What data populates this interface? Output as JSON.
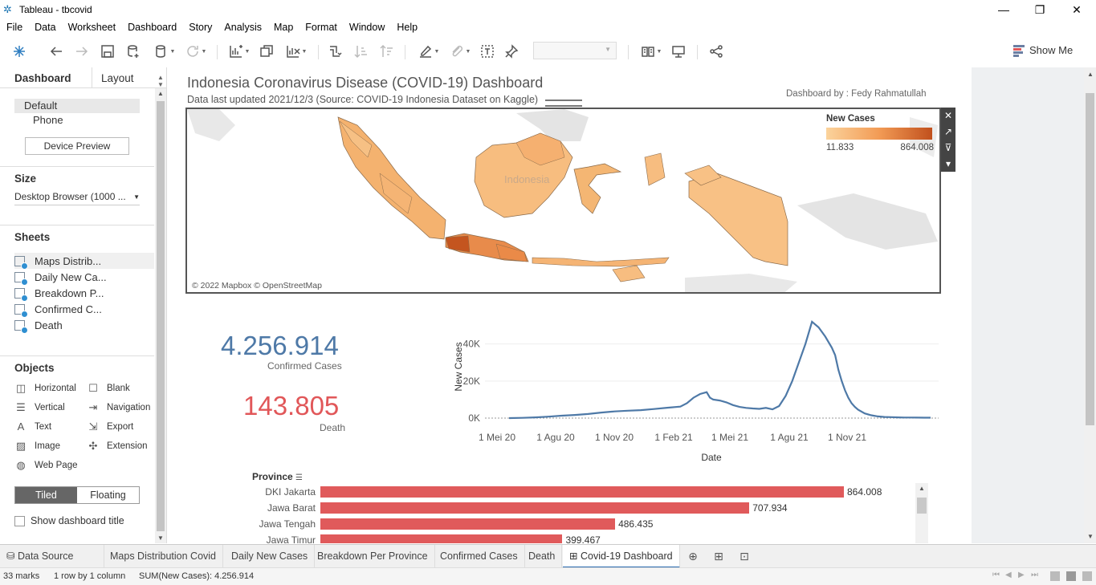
{
  "window": {
    "title": "Tableau - tbcovid",
    "minimize": "—",
    "maximize": "❐",
    "close": "✕"
  },
  "menu": [
    "File",
    "Data",
    "Worksheet",
    "Dashboard",
    "Story",
    "Analysis",
    "Map",
    "Format",
    "Window",
    "Help"
  ],
  "toolbar": {
    "show_me": "Show Me"
  },
  "left_pane": {
    "tab_dashboard": "Dashboard",
    "tab_layout": "Layout",
    "devices": [
      "Default",
      "Phone"
    ],
    "device_preview": "Device Preview",
    "size_title": "Size",
    "size_value": "Desktop Browser (1000 ...",
    "sheets_title": "Sheets",
    "sheets": [
      "Maps Distrib...",
      "Daily New Ca...",
      "Breakdown P...",
      "Confirmed C...",
      "Death"
    ],
    "objects_title": "Objects",
    "objects": {
      "horizontal": "Horizontal",
      "blank": "Blank",
      "vertical": "Vertical",
      "navigation": "Navigation",
      "text": "Text",
      "export": "Export",
      "image": "Image",
      "extension": "Extension",
      "web_page": "Web Page"
    },
    "tiled": "Tiled",
    "floating": "Floating",
    "show_title": "Show dashboard title"
  },
  "dashboard": {
    "title": "Indonesia Coronavirus Disease (COVID-19) Dashboard",
    "subtitle": "Data last updated 2021/12/3 (Source: COVID-19 Indonesia Dataset on Kaggle)",
    "author": "Dashboard by : Fedy Rahmatullah",
    "map": {
      "legend_title": "New Cases",
      "legend_min": "11.833",
      "legend_max": "864.008",
      "credit": "© 2022 Mapbox © OpenStreetMap",
      "country_label": "Indonesia"
    },
    "kpi": {
      "confirmed_value": "4.256.914",
      "confirmed_label": "Confirmed Cases",
      "death_value": "143.805",
      "death_label": "Death"
    },
    "colors": {
      "accent_blue": "#4e79a7",
      "death_red": "#e15759",
      "bar_red": "#e05a5b"
    }
  },
  "chart_data": [
    {
      "type": "line",
      "title": "Daily New Cases",
      "xlabel": "Date",
      "ylabel": "New Cases",
      "x_ticks": [
        "1 Mei 20",
        "1 Agu 20",
        "1 Nov 20",
        "1 Feb 21",
        "1 Mei 21",
        "1 Agu 21",
        "1 Nov 21"
      ],
      "y_ticks": [
        "0K",
        "20K",
        "40K"
      ],
      "ylim": [
        0,
        55000
      ],
      "series": [
        {
          "name": "New Cases",
          "x": [
            0,
            20,
            40,
            60,
            80,
            100,
            120,
            140,
            160,
            180,
            200,
            220,
            240,
            260,
            270,
            280,
            290,
            300,
            305,
            310,
            320,
            330,
            340,
            350,
            360,
            370,
            380,
            390,
            400,
            410,
            420,
            430,
            440,
            450,
            460,
            470,
            480,
            490,
            495,
            500,
            505,
            510,
            515,
            520,
            525,
            530,
            540,
            550,
            560,
            570,
            580,
            590,
            600,
            610,
            620,
            630,
            640
          ],
          "y": [
            0,
            150,
            400,
            800,
            1300,
            1700,
            2200,
            3000,
            3600,
            4000,
            4300,
            4900,
            5600,
            6200,
            8000,
            11000,
            13000,
            14000,
            11000,
            10000,
            9500,
            8500,
            7000,
            6000,
            5500,
            5200,
            5000,
            5500,
            4700,
            6500,
            12000,
            20000,
            30000,
            40000,
            52000,
            49000,
            44000,
            38000,
            34000,
            26000,
            20000,
            15000,
            11000,
            8000,
            6000,
            4500,
            2500,
            1500,
            900,
            600,
            500,
            400,
            300,
            300,
            250,
            200,
            200
          ]
        }
      ]
    },
    {
      "type": "bar",
      "title": "Breakdown Per Province",
      "xlabel": "",
      "ylabel": "Province",
      "categories": [
        "DKI Jakarta",
        "Jawa Barat",
        "Jawa Tengah",
        "Jawa Timur"
      ],
      "values": [
        864008,
        707934,
        486435,
        399467
      ],
      "value_labels": [
        "864.008",
        "707.934",
        "486.435",
        "399.467"
      ]
    }
  ],
  "sheet_tabs": {
    "data_source": "Data Source",
    "tabs": [
      "Maps Distribution Covid",
      "Daily New Cases",
      "Breakdown Per Province",
      "Confirmed Cases",
      "Death",
      "Covid-19 Dashboard"
    ]
  },
  "status_bar": {
    "marks": "33 marks",
    "rows": "1 row by 1 column",
    "sum": "SUM(New Cases): 4.256.914"
  }
}
